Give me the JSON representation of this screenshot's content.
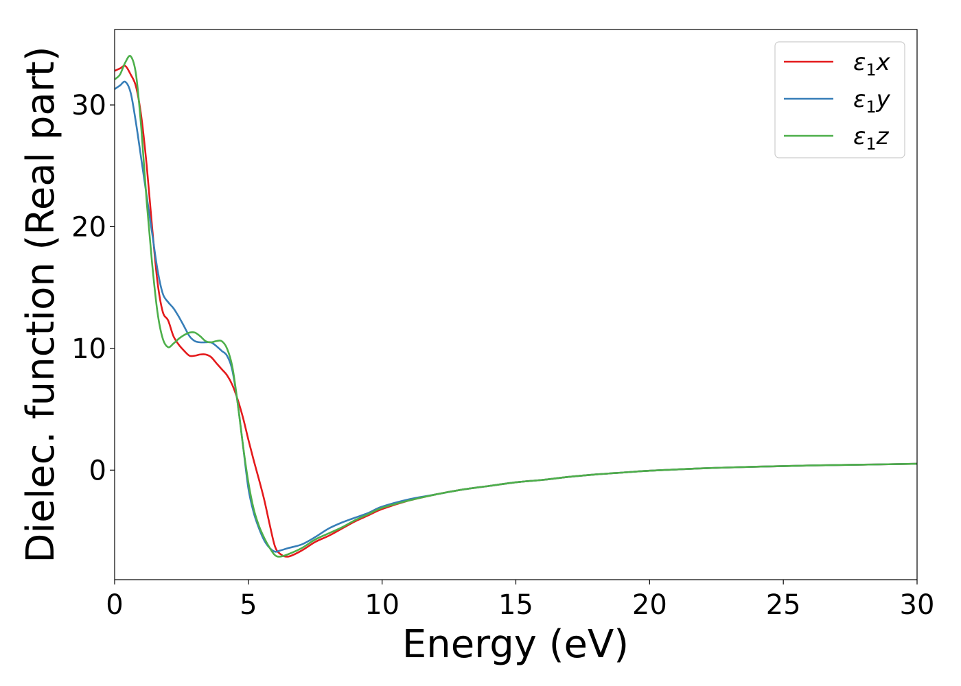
{
  "chart_data": {
    "type": "line",
    "xlabel": "Energy (eV)",
    "ylabel": "Dielec. function (Real part)",
    "xlim": [
      0,
      30
    ],
    "ylim": [
      -9,
      36.2
    ],
    "xticks": [
      "0",
      "5",
      "10",
      "15",
      "20",
      "25",
      "30"
    ],
    "yticks": [
      "0",
      "10",
      "20",
      "30"
    ],
    "legend_position": "top-right",
    "grid": false,
    "series": [
      {
        "name": "ε₁x",
        "name_main": "ε",
        "name_sub": "1",
        "name_var": "x",
        "color": "#e41a1c",
        "x": [
          0,
          0.2,
          0.4,
          0.6,
          0.8,
          1.0,
          1.2,
          1.4,
          1.6,
          1.8,
          2.0,
          2.2,
          2.4,
          2.6,
          2.8,
          3.0,
          3.2,
          3.4,
          3.6,
          3.8,
          4.0,
          4.2,
          4.4,
          4.6,
          4.8,
          5.0,
          5.2,
          5.4,
          5.6,
          5.8,
          6.0,
          6.2,
          6.5,
          7.0,
          7.5,
          8.0,
          8.5,
          9.0,
          9.5,
          10.0,
          11.0,
          12.0,
          13.0,
          14.0,
          15.0,
          16.0,
          17.0,
          18.0,
          19.0,
          20.0,
          22.0,
          24.0,
          26.0,
          28.0,
          30.0
        ],
        "y": [
          32.8,
          33.0,
          33.2,
          32.5,
          31.5,
          29.0,
          25.0,
          20.0,
          15.5,
          13.0,
          12.3,
          11.0,
          10.3,
          9.8,
          9.4,
          9.4,
          9.5,
          9.5,
          9.3,
          8.8,
          8.3,
          7.8,
          7.0,
          5.8,
          4.3,
          2.5,
          0.8,
          -0.8,
          -2.5,
          -4.5,
          -6.3,
          -6.9,
          -7.1,
          -6.6,
          -5.9,
          -5.4,
          -4.8,
          -4.2,
          -3.7,
          -3.2,
          -2.5,
          -2.0,
          -1.6,
          -1.3,
          -1.0,
          -0.8,
          -0.55,
          -0.35,
          -0.2,
          -0.05,
          0.15,
          0.28,
          0.38,
          0.45,
          0.52
        ]
      },
      {
        "name": "ε₁y",
        "name_main": "ε",
        "name_sub": "1",
        "name_var": "y",
        "color": "#377eb8",
        "x": [
          0,
          0.2,
          0.4,
          0.6,
          0.8,
          1.0,
          1.2,
          1.4,
          1.6,
          1.8,
          2.0,
          2.2,
          2.4,
          2.6,
          2.8,
          3.0,
          3.2,
          3.4,
          3.6,
          3.8,
          4.0,
          4.2,
          4.4,
          4.6,
          4.8,
          5.0,
          5.2,
          5.4,
          5.6,
          5.8,
          6.0,
          6.2,
          6.5,
          7.0,
          7.5,
          8.0,
          8.5,
          9.0,
          9.5,
          10.0,
          11.0,
          12.0,
          13.0,
          14.0,
          15.0,
          16.0,
          17.0,
          18.0,
          19.0,
          20.0,
          22.0,
          24.0,
          26.0,
          28.0,
          30.0
        ],
        "y": [
          31.3,
          31.6,
          31.9,
          31.0,
          28.5,
          25.5,
          22.5,
          19.5,
          16.5,
          14.5,
          13.8,
          13.3,
          12.6,
          11.8,
          11.0,
          10.6,
          10.5,
          10.5,
          10.5,
          10.2,
          9.8,
          9.4,
          8.2,
          5.5,
          2.0,
          -1.5,
          -3.5,
          -4.8,
          -5.8,
          -6.4,
          -6.7,
          -6.6,
          -6.4,
          -6.1,
          -5.5,
          -4.8,
          -4.3,
          -3.9,
          -3.5,
          -3.0,
          -2.4,
          -2.0,
          -1.6,
          -1.3,
          -1.0,
          -0.8,
          -0.55,
          -0.35,
          -0.2,
          -0.05,
          0.15,
          0.28,
          0.38,
          0.45,
          0.52
        ]
      },
      {
        "name": "ε₁z",
        "name_main": "ε",
        "name_sub": "1",
        "name_var": "z",
        "color": "#4daf4a",
        "x": [
          0,
          0.2,
          0.4,
          0.6,
          0.8,
          1.0,
          1.2,
          1.4,
          1.6,
          1.8,
          2.0,
          2.2,
          2.4,
          2.6,
          2.8,
          3.0,
          3.2,
          3.4,
          3.6,
          3.8,
          4.0,
          4.2,
          4.4,
          4.6,
          4.8,
          5.0,
          5.2,
          5.4,
          5.6,
          5.8,
          6.0,
          6.2,
          6.5,
          7.0,
          7.5,
          8.0,
          8.5,
          9.0,
          9.5,
          10.0,
          11.0,
          12.0,
          13.0,
          14.0,
          15.0,
          16.0,
          17.0,
          18.0,
          19.0,
          20.0,
          22.0,
          24.0,
          26.0,
          28.0,
          30.0
        ],
        "y": [
          32.1,
          32.5,
          33.5,
          34.0,
          32.5,
          28.0,
          22.0,
          17.0,
          13.0,
          10.8,
          10.1,
          10.4,
          10.8,
          11.1,
          11.3,
          11.3,
          11.0,
          10.6,
          10.5,
          10.6,
          10.6,
          10.0,
          8.5,
          5.5,
          2.0,
          -1.0,
          -3.2,
          -4.6,
          -5.6,
          -6.4,
          -7.0,
          -7.1,
          -6.9,
          -6.4,
          -5.7,
          -5.2,
          -4.7,
          -4.1,
          -3.6,
          -3.1,
          -2.5,
          -2.0,
          -1.6,
          -1.3,
          -1.0,
          -0.8,
          -0.55,
          -0.35,
          -0.2,
          -0.05,
          0.15,
          0.28,
          0.38,
          0.45,
          0.52
        ]
      }
    ]
  }
}
